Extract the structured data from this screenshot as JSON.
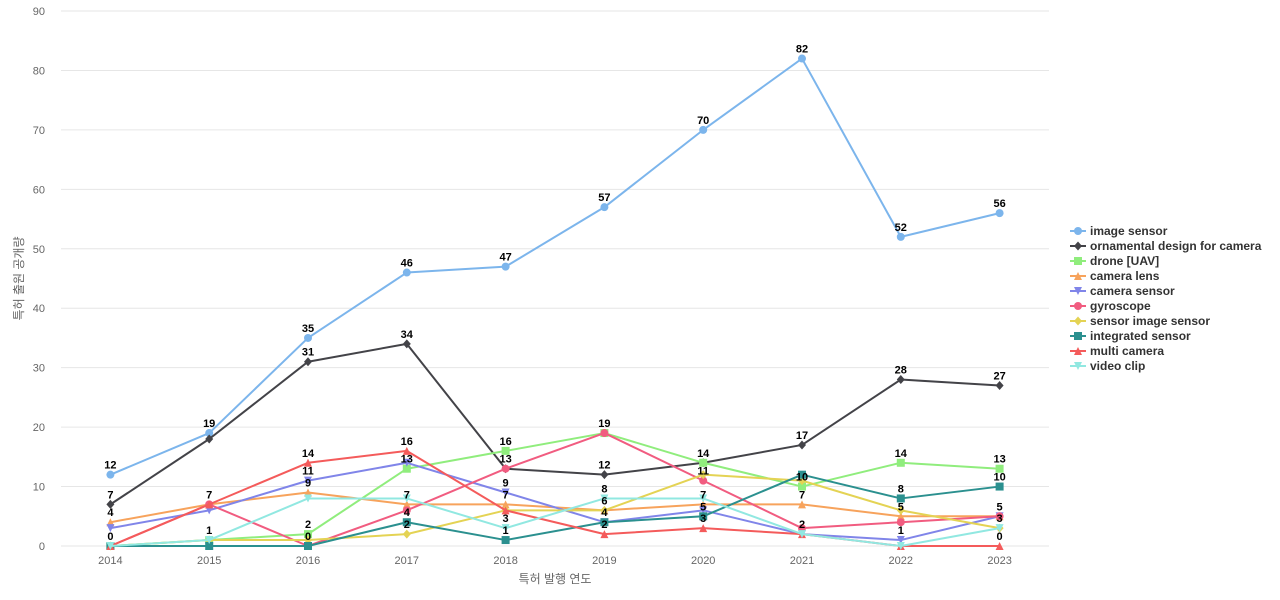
{
  "chart_data": {
    "type": "line",
    "title": "",
    "xlabel": "특허 발행 연도",
    "ylabel": "특허 출원 공개량",
    "ylim": [
      0,
      90
    ],
    "yticks": [
      0,
      10,
      20,
      30,
      40,
      50,
      60,
      70,
      80,
      90
    ],
    "grid": true,
    "legend_position": "right",
    "categories": [
      "2014",
      "2015",
      "2016",
      "2017",
      "2018",
      "2019",
      "2020",
      "2021",
      "2022",
      "2023"
    ],
    "series": [
      {
        "name": "image sensor",
        "color": "#7cb5ec",
        "marker": "circle",
        "values": [
          12,
          19,
          35,
          46,
          47,
          57,
          70,
          82,
          52,
          56
        ],
        "labeled": true
      },
      {
        "name": "ornamental design for camera",
        "color": "#434348",
        "marker": "diamond",
        "values": [
          7,
          18,
          31,
          34,
          13,
          12,
          14,
          17,
          28,
          27
        ],
        "labeled": true
      },
      {
        "name": "drone [UAV]",
        "color": "#90ed7d",
        "marker": "square",
        "values": [
          0,
          1,
          2,
          13,
          16,
          19,
          14,
          10,
          14,
          13
        ],
        "labeled": true
      },
      {
        "name": "camera lens",
        "color": "#f7a35c",
        "marker": "triangle",
        "values": [
          4,
          7,
          9,
          7,
          7,
          6,
          7,
          7,
          5,
          5
        ],
        "labeled": false
      },
      {
        "name": "camera sensor",
        "color": "#8085e9",
        "marker": "triangle-down",
        "values": [
          3,
          6,
          11,
          14,
          9,
          4,
          6,
          2,
          1,
          5
        ],
        "labeled": false
      },
      {
        "name": "gyroscope",
        "color": "#f15c80",
        "marker": "circle",
        "values": [
          0,
          7,
          0,
          6,
          13,
          19,
          11,
          3,
          4,
          5
        ],
        "labeled": false
      },
      {
        "name": "sensor image sensor",
        "color": "#e4d354",
        "marker": "diamond",
        "values": [
          0,
          1,
          1,
          2,
          6,
          6,
          12,
          11,
          6,
          3
        ],
        "labeled": false
      },
      {
        "name": "integrated sensor",
        "color": "#2b908f",
        "marker": "square",
        "values": [
          0,
          0,
          0,
          4,
          1,
          4,
          5,
          12,
          8,
          10
        ],
        "labeled": false
      },
      {
        "name": "multi camera",
        "color": "#f45b5b",
        "marker": "triangle",
        "values": [
          0,
          7,
          14,
          16,
          6,
          2,
          3,
          2,
          0,
          0
        ],
        "labeled": false
      },
      {
        "name": "video clip",
        "color": "#91e8e1",
        "marker": "triangle-down",
        "values": [
          0,
          1,
          8,
          8,
          3,
          8,
          8,
          2,
          0,
          3
        ],
        "labeled": false
      }
    ],
    "data_labels": [
      {
        "category": "2014",
        "text": "12",
        "y": 12
      },
      {
        "category": "2014",
        "text": "7",
        "y": 7
      },
      {
        "category": "2014",
        "text": "4",
        "y": 4
      },
      {
        "category": "2014",
        "text": "0",
        "y": 0
      },
      {
        "category": "2015",
        "text": "19",
        "y": 19
      },
      {
        "category": "2015",
        "text": "7",
        "y": 7
      },
      {
        "category": "2015",
        "text": "1",
        "y": 1
      },
      {
        "category": "2016",
        "text": "35",
        "y": 35
      },
      {
        "category": "2016",
        "text": "31",
        "y": 31
      },
      {
        "category": "2016",
        "text": "14",
        "y": 14
      },
      {
        "category": "2016",
        "text": "11",
        "y": 11
      },
      {
        "category": "2016",
        "text": "9",
        "y": 9
      },
      {
        "category": "2016",
        "text": "2",
        "y": 2
      },
      {
        "category": "2016",
        "text": "0",
        "y": 0
      },
      {
        "category": "2017",
        "text": "46",
        "y": 46
      },
      {
        "category": "2017",
        "text": "34",
        "y": 34
      },
      {
        "category": "2017",
        "text": "16",
        "y": 16
      },
      {
        "category": "2017",
        "text": "13",
        "y": 13
      },
      {
        "category": "2017",
        "text": "7",
        "y": 7
      },
      {
        "category": "2017",
        "text": "4",
        "y": 4
      },
      {
        "category": "2017",
        "text": "2",
        "y": 2
      },
      {
        "category": "2018",
        "text": "47",
        "y": 47
      },
      {
        "category": "2018",
        "text": "16",
        "y": 16
      },
      {
        "category": "2018",
        "text": "13",
        "y": 13
      },
      {
        "category": "2018",
        "text": "9",
        "y": 9
      },
      {
        "category": "2018",
        "text": "7",
        "y": 7
      },
      {
        "category": "2018",
        "text": "3",
        "y": 3
      },
      {
        "category": "2018",
        "text": "1",
        "y": 1
      },
      {
        "category": "2019",
        "text": "57",
        "y": 57
      },
      {
        "category": "2019",
        "text": "19",
        "y": 19
      },
      {
        "category": "2019",
        "text": "12",
        "y": 12
      },
      {
        "category": "2019",
        "text": "8",
        "y": 8
      },
      {
        "category": "2019",
        "text": "6",
        "y": 6
      },
      {
        "category": "2019",
        "text": "4",
        "y": 4
      },
      {
        "category": "2019",
        "text": "2",
        "y": 2
      },
      {
        "category": "2020",
        "text": "70",
        "y": 70
      },
      {
        "category": "2020",
        "text": "14",
        "y": 14
      },
      {
        "category": "2020",
        "text": "11",
        "y": 11
      },
      {
        "category": "2020",
        "text": "7",
        "y": 7
      },
      {
        "category": "2020",
        "text": "5",
        "y": 5
      },
      {
        "category": "2020",
        "text": "3",
        "y": 3
      },
      {
        "category": "2021",
        "text": "82",
        "y": 82
      },
      {
        "category": "2021",
        "text": "17",
        "y": 17
      },
      {
        "category": "2021",
        "text": "10",
        "y": 10
      },
      {
        "category": "2021",
        "text": "7",
        "y": 7
      },
      {
        "category": "2021",
        "text": "2",
        "y": 2
      },
      {
        "category": "2022",
        "text": "52",
        "y": 52
      },
      {
        "category": "2022",
        "text": "28",
        "y": 28
      },
      {
        "category": "2022",
        "text": "14",
        "y": 14
      },
      {
        "category": "2022",
        "text": "8",
        "y": 8
      },
      {
        "category": "2022",
        "text": "5",
        "y": 5
      },
      {
        "category": "2022",
        "text": "1",
        "y": 1
      },
      {
        "category": "2023",
        "text": "56",
        "y": 56
      },
      {
        "category": "2023",
        "text": "27",
        "y": 27
      },
      {
        "category": "2023",
        "text": "13",
        "y": 13
      },
      {
        "category": "2023",
        "text": "10",
        "y": 10
      },
      {
        "category": "2023",
        "text": "5",
        "y": 5
      },
      {
        "category": "2023",
        "text": "3",
        "y": 3
      },
      {
        "category": "2023",
        "text": "0",
        "y": 0
      }
    ]
  }
}
